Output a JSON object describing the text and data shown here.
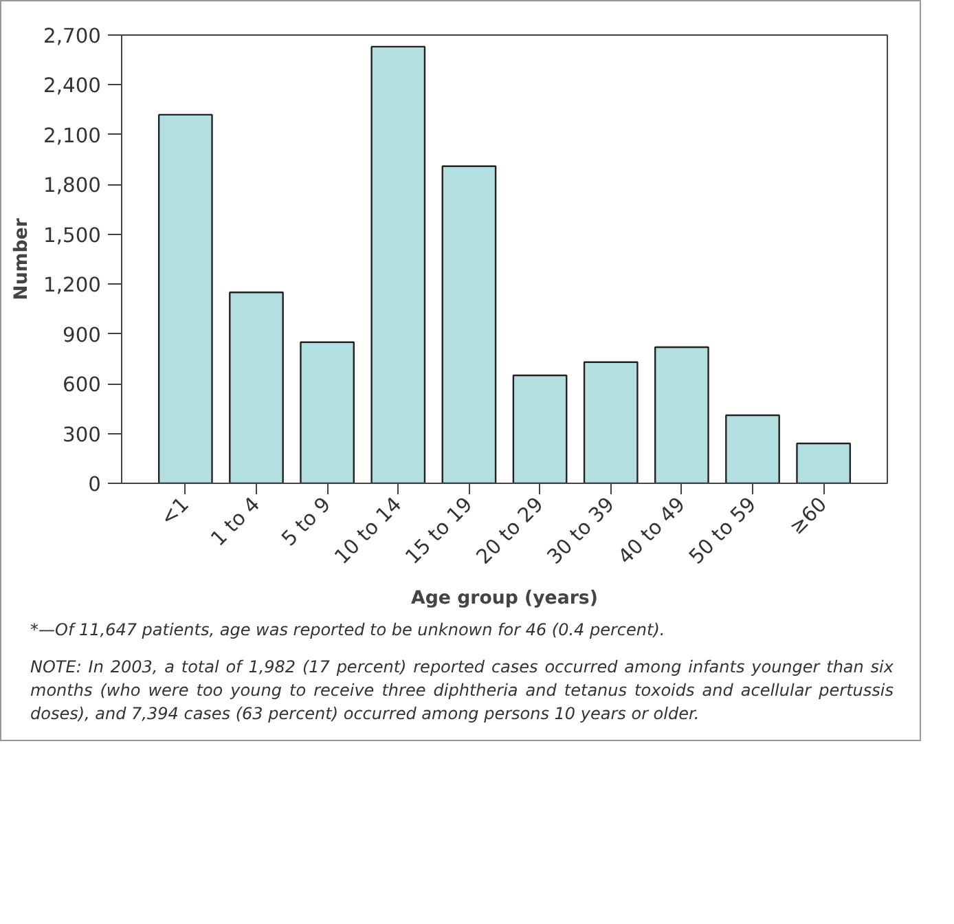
{
  "chart_data": {
    "type": "bar",
    "xlabel": "Age group (years)",
    "ylabel": "Number",
    "categories": [
      "<1",
      "1 to 4",
      "5 to 9",
      "10 to 14",
      "15 to 19",
      "20 to 29",
      "30 to 39",
      "40 to 49",
      "50 to 59",
      "≥60"
    ],
    "values": [
      2220,
      1150,
      850,
      2630,
      1910,
      650,
      730,
      820,
      410,
      240
    ],
    "color": "#b3dfe1",
    "ylim": [
      0,
      2700
    ],
    "yticks": [
      0,
      300,
      600,
      900,
      {
        "value": 1200,
        "label": "1,200"
      },
      {
        "value": 1500,
        "label": "1,500"
      },
      {
        "value": 1800,
        "label": "1,800"
      },
      {
        "value": 2100,
        "label": "2,100"
      },
      {
        "value": 2400,
        "label": "2,400"
      },
      {
        "value": 2700,
        "label": "2,700"
      }
    ],
    "grid": false,
    "annotations": [
      "*—Of 11,647 patients, age was reported to be unknown for 46 (0.4 percent).",
      "NOTE: In 2003, a total of 1,982 (17 percent) reported cases occurred among infants younger than six months (who were too young to receive three diphtheria and tetanus toxoids and acellular pertussis doses), and 7,394 cases (63 percent) occurred among persons 10 years or older."
    ]
  }
}
